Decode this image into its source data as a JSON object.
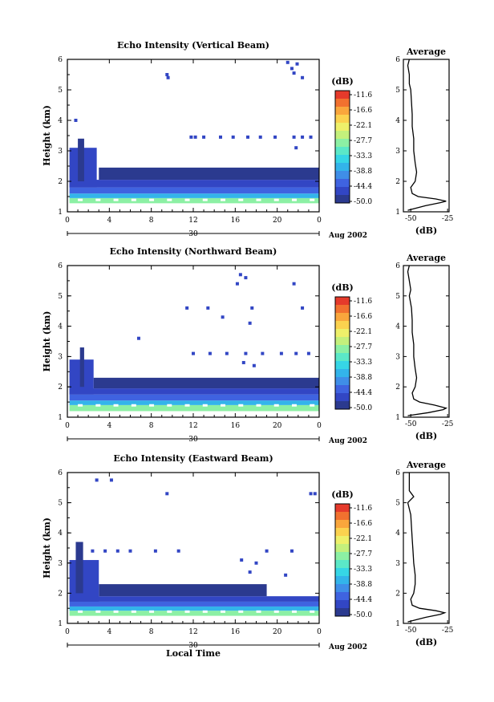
{
  "colors": {
    "scale": [
      "#2b3a8f",
      "#3246c4",
      "#3f63e0",
      "#3f8ee8",
      "#33b4ea",
      "#36d6e6",
      "#5be8c8",
      "#8cf0a4",
      "#c4f07c",
      "#eef06a",
      "#fbd24f",
      "#f9a63c",
      "#f1712f",
      "#e53a2b"
    ],
    "text": "#000000",
    "background": "#ffffff"
  },
  "chart_data": [
    {
      "type": "heatmap",
      "title": "Echo Intensity (Vertical Beam)",
      "ylabel": "Height (km)",
      "xlabel": "",
      "xlim": [
        0,
        24
      ],
      "ylim": [
        1,
        6
      ],
      "x_ticks": [
        "0",
        "4",
        "8",
        "12",
        "16",
        "20",
        "0"
      ],
      "y_ticks": [
        "1",
        "2",
        "3",
        "4",
        "5",
        "6"
      ],
      "day_label": "30",
      "month_label": "Aug 2002",
      "colorbar": {
        "title": "(dB)",
        "labels": [
          "-11.6",
          "-16.6",
          "-22.1",
          "-27.7",
          "-33.3",
          "-38.8",
          "-44.4",
          "-50.0"
        ],
        "range": [
          -50.0,
          -11.6
        ]
      },
      "average": {
        "title": "Average",
        "xlabel": "(dB)",
        "x_ticks": [
          "-50",
          "-25"
        ],
        "xlim": [
          -55,
          -24
        ],
        "y_ticks": [
          "1",
          "2",
          "3",
          "4",
          "5",
          "6"
        ],
        "profile": [
          [
            1.05,
            -52
          ],
          [
            1.2,
            -40
          ],
          [
            1.3,
            -30
          ],
          [
            1.35,
            -26
          ],
          [
            1.42,
            -33
          ],
          [
            1.5,
            -45
          ],
          [
            1.6,
            -49
          ],
          [
            1.8,
            -50
          ],
          [
            2.0,
            -47
          ],
          [
            2.3,
            -46
          ],
          [
            2.6,
            -47
          ],
          [
            3.0,
            -48
          ],
          [
            3.4,
            -48
          ],
          [
            3.8,
            -49
          ],
          [
            4.2,
            -49
          ],
          [
            4.6,
            -49.5
          ],
          [
            5.0,
            -50
          ],
          [
            5.2,
            -51
          ],
          [
            5.5,
            -51
          ],
          [
            5.8,
            -52
          ],
          [
            6.0,
            -51
          ]
        ]
      },
      "layers": [
        {
          "x0": 0.2,
          "x1": 24,
          "y0": 1.28,
          "y1": 1.45,
          "level": 7
        },
        {
          "x0": 0.2,
          "x1": 24,
          "y0": 1.45,
          "y1": 1.6,
          "level": 4
        },
        {
          "x0": 0.2,
          "x1": 24,
          "y0": 1.6,
          "y1": 1.8,
          "level": 2
        },
        {
          "x0": 0.2,
          "x1": 24,
          "y0": 1.8,
          "y1": 2.05,
          "level": 1
        },
        {
          "x0": 3.0,
          "x1": 24,
          "y0": 2.05,
          "y1": 2.45,
          "level": 0
        },
        {
          "x0": 0.2,
          "x1": 2.8,
          "y0": 1.8,
          "y1": 3.1,
          "level": 1
        },
        {
          "x0": 1.0,
          "x1": 1.6,
          "y0": 2.0,
          "y1": 3.4,
          "level": 0
        }
      ],
      "speckles": [
        [
          9.5,
          5.5
        ],
        [
          9.6,
          5.4
        ],
        [
          21.0,
          5.9
        ],
        [
          21.4,
          5.7
        ],
        [
          21.6,
          5.55
        ],
        [
          21.9,
          5.85
        ],
        [
          22.4,
          5.4
        ],
        [
          11.8,
          3.45
        ],
        [
          12.2,
          3.45
        ],
        [
          13.0,
          3.45
        ],
        [
          14.6,
          3.45
        ],
        [
          15.8,
          3.45
        ],
        [
          17.2,
          3.45
        ],
        [
          18.4,
          3.45
        ],
        [
          19.8,
          3.45
        ],
        [
          21.6,
          3.45
        ],
        [
          22.4,
          3.45
        ],
        [
          23.2,
          3.45
        ],
        [
          21.8,
          3.1
        ],
        [
          0.8,
          4.0
        ]
      ]
    },
    {
      "type": "heatmap",
      "title": "Echo Intensity (Northward Beam)",
      "ylabel": "Height (km)",
      "xlabel": "",
      "xlim": [
        0,
        24
      ],
      "ylim": [
        1,
        6
      ],
      "x_ticks": [
        "0",
        "4",
        "8",
        "12",
        "16",
        "20",
        "0"
      ],
      "y_ticks": [
        "1",
        "2",
        "3",
        "4",
        "5",
        "6"
      ],
      "day_label": "30",
      "month_label": "Aug 2002",
      "colorbar": {
        "title": "(dB)",
        "labels": [
          "-11.6",
          "-16.6",
          "-22.1",
          "-27.7",
          "-33.3",
          "-38.8",
          "-44.4",
          "-50.0"
        ],
        "range": [
          -50.0,
          -11.6
        ]
      },
      "average": {
        "title": "Average",
        "xlabel": "(dB)",
        "x_ticks": [
          "-50",
          "-25"
        ],
        "xlim": [
          -55,
          -24
        ],
        "y_ticks": [
          "1",
          "2",
          "3",
          "4",
          "5",
          "6"
        ],
        "profile": [
          [
            1.05,
            -52
          ],
          [
            1.15,
            -38
          ],
          [
            1.25,
            -28
          ],
          [
            1.3,
            -26
          ],
          [
            1.4,
            -34
          ],
          [
            1.5,
            -44
          ],
          [
            1.6,
            -48
          ],
          [
            1.8,
            -49
          ],
          [
            2.0,
            -47
          ],
          [
            2.3,
            -46
          ],
          [
            2.6,
            -47
          ],
          [
            3.0,
            -48
          ],
          [
            3.4,
            -48
          ],
          [
            3.8,
            -49
          ],
          [
            4.2,
            -49
          ],
          [
            4.6,
            -49.5
          ],
          [
            5.0,
            -51
          ],
          [
            5.2,
            -50
          ],
          [
            5.5,
            -51
          ],
          [
            5.8,
            -52
          ],
          [
            6.0,
            -51
          ]
        ]
      },
      "layers": [
        {
          "x0": 0.2,
          "x1": 24,
          "y0": 1.2,
          "y1": 1.4,
          "level": 7
        },
        {
          "x0": 0.2,
          "x1": 24,
          "y0": 1.4,
          "y1": 1.55,
          "level": 4
        },
        {
          "x0": 0.2,
          "x1": 24,
          "y0": 1.55,
          "y1": 1.75,
          "level": 2
        },
        {
          "x0": 0.2,
          "x1": 24,
          "y0": 1.75,
          "y1": 1.95,
          "level": 1
        },
        {
          "x0": 2.5,
          "x1": 24,
          "y0": 1.95,
          "y1": 2.3,
          "level": 0
        },
        {
          "x0": 0.2,
          "x1": 2.5,
          "y0": 1.75,
          "y1": 2.9,
          "level": 1
        },
        {
          "x0": 1.2,
          "x1": 1.6,
          "y0": 2.0,
          "y1": 3.3,
          "level": 0
        }
      ],
      "speckles": [
        [
          16.5,
          5.7
        ],
        [
          17.0,
          5.6
        ],
        [
          16.2,
          5.4
        ],
        [
          21.6,
          5.4
        ],
        [
          11.4,
          4.6
        ],
        [
          13.4,
          4.6
        ],
        [
          17.6,
          4.6
        ],
        [
          22.4,
          4.6
        ],
        [
          17.4,
          4.1
        ],
        [
          14.8,
          4.3
        ],
        [
          6.8,
          3.6
        ],
        [
          12.0,
          3.1
        ],
        [
          13.6,
          3.1
        ],
        [
          15.2,
          3.1
        ],
        [
          17.0,
          3.1
        ],
        [
          18.6,
          3.1
        ],
        [
          20.4,
          3.1
        ],
        [
          21.8,
          3.1
        ],
        [
          23.0,
          3.1
        ],
        [
          16.8,
          2.8
        ],
        [
          17.8,
          2.7
        ]
      ]
    },
    {
      "type": "heatmap",
      "title": "Echo Intensity (Eastward Beam)",
      "ylabel": "Height (km)",
      "xlabel": "Local Time",
      "xlim": [
        0,
        24
      ],
      "ylim": [
        1,
        6
      ],
      "x_ticks": [
        "0",
        "4",
        "8",
        "12",
        "16",
        "20",
        "0"
      ],
      "y_ticks": [
        "1",
        "2",
        "3",
        "4",
        "5",
        "6"
      ],
      "day_label": "30",
      "month_label": "Aug 2002",
      "colorbar": {
        "title": "(dB)",
        "labels": [
          "-11.6",
          "-16.6",
          "-22.1",
          "-27.7",
          "-33.3",
          "-38.8",
          "-44.4",
          "-50.0"
        ],
        "range": [
          -50.0,
          -11.6
        ]
      },
      "average": {
        "title": "Average",
        "xlabel": "(dB)",
        "x_ticks": [
          "-50",
          "-25"
        ],
        "xlim": [
          -55,
          -24
        ],
        "y_ticks": [
          "1",
          "2",
          "3",
          "4",
          "5",
          "6"
        ],
        "profile": [
          [
            1.05,
            -52
          ],
          [
            1.2,
            -40
          ],
          [
            1.3,
            -30
          ],
          [
            1.35,
            -27
          ],
          [
            1.42,
            -33
          ],
          [
            1.5,
            -44
          ],
          [
            1.6,
            -49
          ],
          [
            1.8,
            -50
          ],
          [
            2.0,
            -48
          ],
          [
            2.3,
            -47
          ],
          [
            2.6,
            -47
          ],
          [
            3.0,
            -48
          ],
          [
            3.4,
            -48.5
          ],
          [
            3.8,
            -49
          ],
          [
            4.2,
            -49.5
          ],
          [
            4.6,
            -50
          ],
          [
            5.0,
            -52
          ],
          [
            5.2,
            -48
          ],
          [
            5.4,
            -51
          ],
          [
            5.7,
            -51
          ],
          [
            6.0,
            -51
          ]
        ]
      },
      "layers": [
        {
          "x0": 0.2,
          "x1": 24,
          "y0": 1.25,
          "y1": 1.42,
          "level": 7
        },
        {
          "x0": 0.2,
          "x1": 24,
          "y0": 1.42,
          "y1": 1.56,
          "level": 4
        },
        {
          "x0": 0.2,
          "x1": 24,
          "y0": 1.56,
          "y1": 1.72,
          "level": 2
        },
        {
          "x0": 0.2,
          "x1": 24,
          "y0": 1.72,
          "y1": 1.9,
          "level": 1
        },
        {
          "x0": 3.0,
          "x1": 19.0,
          "y0": 1.9,
          "y1": 2.3,
          "level": 0
        },
        {
          "x0": 0.2,
          "x1": 3.0,
          "y0": 1.72,
          "y1": 3.1,
          "level": 1
        },
        {
          "x0": 0.8,
          "x1": 1.5,
          "y0": 2.0,
          "y1": 3.7,
          "level": 0
        }
      ],
      "speckles": [
        [
          2.8,
          5.75
        ],
        [
          4.2,
          5.75
        ],
        [
          9.5,
          5.3
        ],
        [
          23.2,
          5.3
        ],
        [
          23.6,
          5.3
        ],
        [
          2.4,
          3.4
        ],
        [
          3.6,
          3.4
        ],
        [
          4.8,
          3.4
        ],
        [
          6.0,
          3.4
        ],
        [
          8.4,
          3.4
        ],
        [
          10.6,
          3.4
        ],
        [
          16.6,
          3.1
        ],
        [
          19.0,
          3.4
        ],
        [
          21.4,
          3.4
        ],
        [
          18.0,
          3.0
        ],
        [
          17.4,
          2.7
        ],
        [
          20.8,
          2.6
        ]
      ]
    }
  ]
}
